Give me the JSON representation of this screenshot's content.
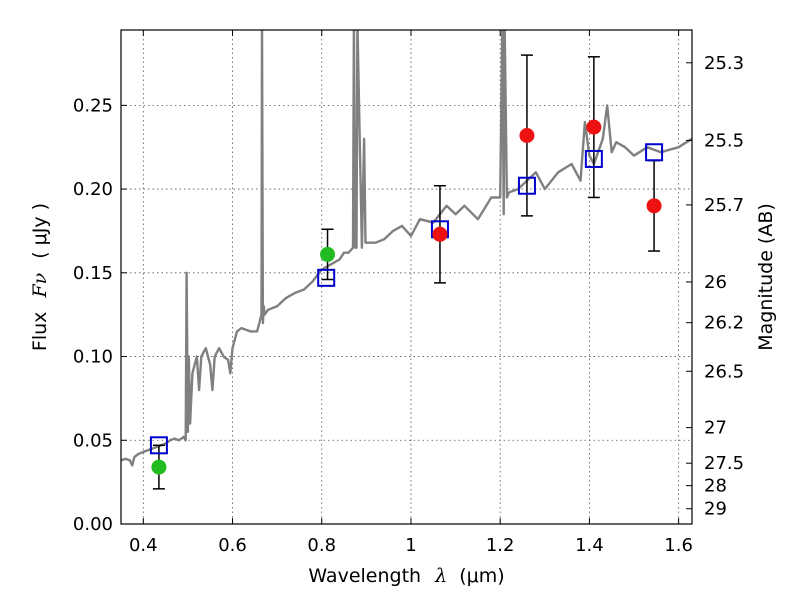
{
  "chart_data": {
    "type": "scatter",
    "title": "",
    "xlabel_prefix": "Wavelength",
    "xlabel_symbol": "λ",
    "xlabel_unit": "(μm)",
    "ylabel_prefix": "Flux",
    "ylabel_symbol": "Fν",
    "ylabel_unit": "( μJy )",
    "y2label": "Magnitude (AB)",
    "xlim": [
      0.35,
      1.63
    ],
    "ylim": [
      0.0,
      0.295
    ],
    "grid": true,
    "x_ticks": [
      {
        "value": 0.4,
        "label": "0.4"
      },
      {
        "value": 0.6,
        "label": "0.6"
      },
      {
        "value": 0.8,
        "label": "0.8"
      },
      {
        "value": 1.0,
        "label": "1"
      },
      {
        "value": 1.2,
        "label": "1.2"
      },
      {
        "value": 1.4,
        "label": "1.4"
      },
      {
        "value": 1.6,
        "label": "1.6"
      }
    ],
    "y_ticks": [
      {
        "value": 0.0,
        "label": "0.00"
      },
      {
        "value": 0.05,
        "label": "0.05"
      },
      {
        "value": 0.1,
        "label": "0.10"
      },
      {
        "value": 0.15,
        "label": "0.15"
      },
      {
        "value": 0.2,
        "label": "0.20"
      },
      {
        "value": 0.25,
        "label": "0.25"
      }
    ],
    "magnitude_ticks": [
      {
        "label": "25.3"
      },
      {
        "label": "25.5"
      },
      {
        "label": "25.7"
      },
      {
        "label": "26"
      },
      {
        "label": "26.2"
      },
      {
        "label": "26.5"
      },
      {
        "label": "27"
      },
      {
        "label": "27.5"
      },
      {
        "label": "28"
      },
      {
        "label": "29"
      }
    ],
    "colors": {
      "spectrum": "#808080",
      "model": "#0000cc",
      "optical": "#22bb22",
      "infrared": "#ee1111",
      "errorbar": "#000000",
      "grid": "#555555"
    },
    "series": [
      {
        "kind": "line",
        "x": [
          0.35,
          0.36,
          0.37,
          0.375,
          0.38,
          0.39,
          0.4,
          0.41,
          0.42,
          0.43,
          0.44,
          0.45,
          0.46,
          0.47,
          0.48,
          0.49,
          0.495,
          0.497,
          0.5,
          0.502,
          0.505,
          0.51,
          0.52,
          0.525,
          0.53,
          0.54,
          0.55,
          0.555,
          0.56,
          0.57,
          0.58,
          0.59,
          0.595,
          0.6,
          0.61,
          0.62,
          0.64,
          0.655,
          0.665,
          0.666,
          0.668,
          0.67,
          0.672,
          0.68,
          0.7,
          0.72,
          0.74,
          0.76,
          0.78,
          0.8,
          0.82,
          0.84,
          0.85,
          0.86,
          0.87,
          0.872,
          0.875,
          0.878,
          0.88,
          0.89,
          0.895,
          0.898,
          0.9,
          0.92,
          0.94,
          0.96,
          0.98,
          1.0,
          1.02,
          1.05,
          1.08,
          1.1,
          1.12,
          1.15,
          1.18,
          1.2,
          1.205,
          1.208,
          1.21,
          1.215,
          1.22,
          1.24,
          1.26,
          1.28,
          1.3,
          1.33,
          1.36,
          1.38,
          1.39,
          1.4,
          1.41,
          1.43,
          1.44,
          1.45,
          1.46,
          1.48,
          1.5,
          1.53,
          1.56,
          1.6,
          1.63
        ],
        "y": [
          0.038,
          0.039,
          0.038,
          0.035,
          0.04,
          0.042,
          0.043,
          0.044,
          0.045,
          0.046,
          0.047,
          0.048,
          0.05,
          0.051,
          0.05,
          0.052,
          0.05,
          0.15,
          0.055,
          0.1,
          0.06,
          0.09,
          0.1,
          0.08,
          0.1,
          0.105,
          0.095,
          0.08,
          0.1,
          0.105,
          0.1,
          0.098,
          0.09,
          0.105,
          0.115,
          0.117,
          0.115,
          0.115,
          0.125,
          0.3,
          0.12,
          0.13,
          0.125,
          0.128,
          0.13,
          0.135,
          0.138,
          0.14,
          0.145,
          0.152,
          0.155,
          0.158,
          0.162,
          0.162,
          0.165,
          0.3,
          0.165,
          0.165,
          0.3,
          0.165,
          0.23,
          0.168,
          0.168,
          0.168,
          0.17,
          0.175,
          0.178,
          0.172,
          0.182,
          0.18,
          0.19,
          0.185,
          0.19,
          0.182,
          0.195,
          0.195,
          0.3,
          0.185,
          0.3,
          0.195,
          0.198,
          0.2,
          0.205,
          0.21,
          0.2,
          0.21,
          0.215,
          0.205,
          0.24,
          0.22,
          0.215,
          0.23,
          0.25,
          0.222,
          0.228,
          0.225,
          0.22,
          0.225,
          0.222,
          0.225,
          0.23
        ]
      },
      {
        "kind": "square",
        "x": [
          0.435,
          0.81,
          1.065,
          1.26,
          1.41,
          1.545
        ],
        "y": [
          0.047,
          0.147,
          0.176,
          0.202,
          0.218,
          0.222
        ]
      },
      {
        "kind": "circle-optical",
        "x": [
          0.435,
          0.813
        ],
        "y": [
          0.034,
          0.161
        ],
        "err": [
          0.013,
          0.015
        ]
      },
      {
        "kind": "circle-infrared",
        "x": [
          1.065,
          1.26,
          1.41,
          1.545
        ],
        "y": [
          0.173,
          0.232,
          0.237,
          0.19
        ],
        "err": [
          0.029,
          0.048,
          0.042,
          0.027
        ]
      }
    ]
  }
}
